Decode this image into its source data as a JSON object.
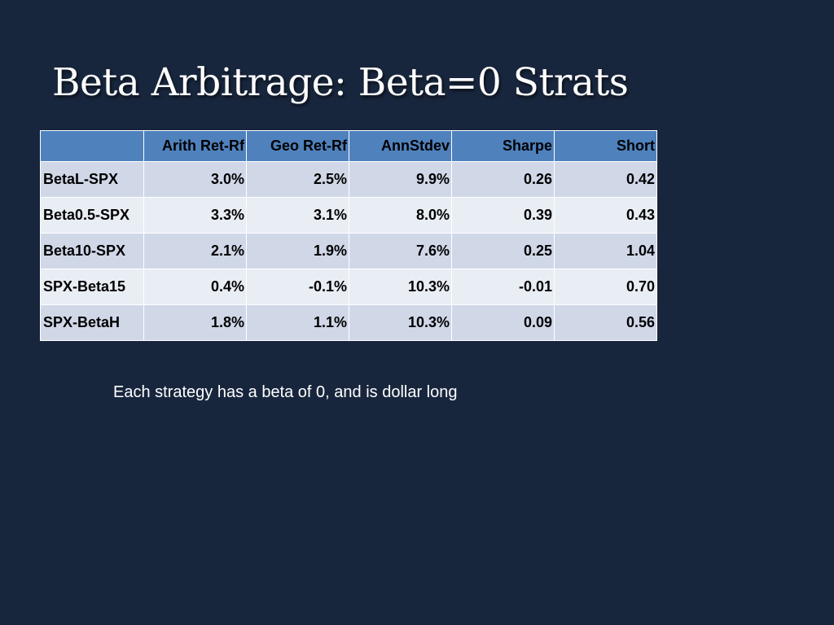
{
  "slide": {
    "title": "Beta Arbitrage: Beta=0 Strats",
    "footnote": "Each strategy has a beta of 0, and is dollar long"
  },
  "table": {
    "columns": [
      "",
      "Arith Ret-Rf",
      "Geo Ret-Rf",
      "AnnStdev",
      "Sharpe",
      "Short"
    ],
    "rows": [
      {
        "label": "BetaL-SPX",
        "cells": [
          "3.0%",
          "2.5%",
          "9.9%",
          "0.26",
          "0.42"
        ]
      },
      {
        "label": "Beta0.5-SPX",
        "cells": [
          "3.3%",
          "3.1%",
          "8.0%",
          "0.39",
          "0.43"
        ]
      },
      {
        "label": "Beta10-SPX",
        "cells": [
          "2.1%",
          "1.9%",
          "7.6%",
          "0.25",
          "1.04"
        ]
      },
      {
        "label": "SPX-Beta15",
        "cells": [
          "0.4%",
          "-0.1%",
          "10.3%",
          "-0.01",
          "0.70"
        ]
      },
      {
        "label": "SPX-BetaH",
        "cells": [
          "1.8%",
          "1.1%",
          "10.3%",
          "0.09",
          "0.56"
        ]
      }
    ]
  },
  "colors": {
    "background": "#18263d",
    "header_fill": "#4f81bd",
    "row_fill_dark": "#d0d8e8",
    "row_fill_light": "#e9edf4",
    "title_text": "#ffffff"
  }
}
